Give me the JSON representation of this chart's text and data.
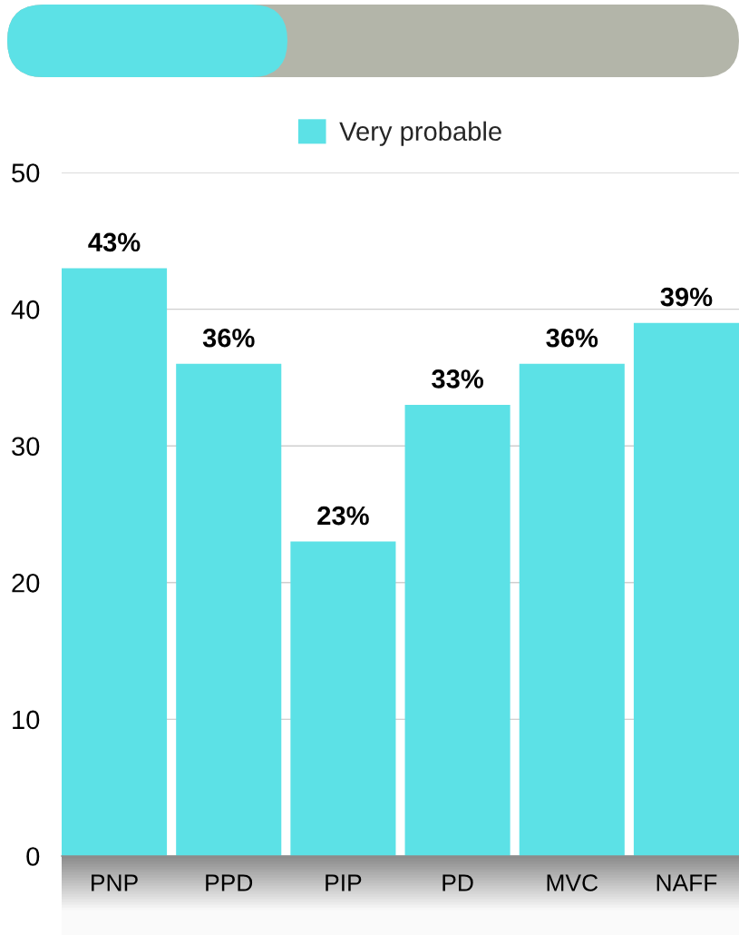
{
  "chart_data": {
    "type": "bar",
    "categories": [
      "PNP",
      "PPD",
      "PIP",
      "PD",
      "MVC",
      "NAFF"
    ],
    "series": [
      {
        "name": "Very probable",
        "color": "#5ce1e6",
        "values": [
          43,
          36,
          23,
          33,
          36,
          39
        ],
        "value_labels": [
          "43%",
          "36%",
          "23%",
          "33%",
          "36%",
          "39%"
        ]
      }
    ],
    "ylim": [
      0,
      50
    ],
    "yticks": [
      0,
      10,
      20,
      30,
      40,
      50
    ],
    "grid": "y",
    "legend": "top"
  }
}
